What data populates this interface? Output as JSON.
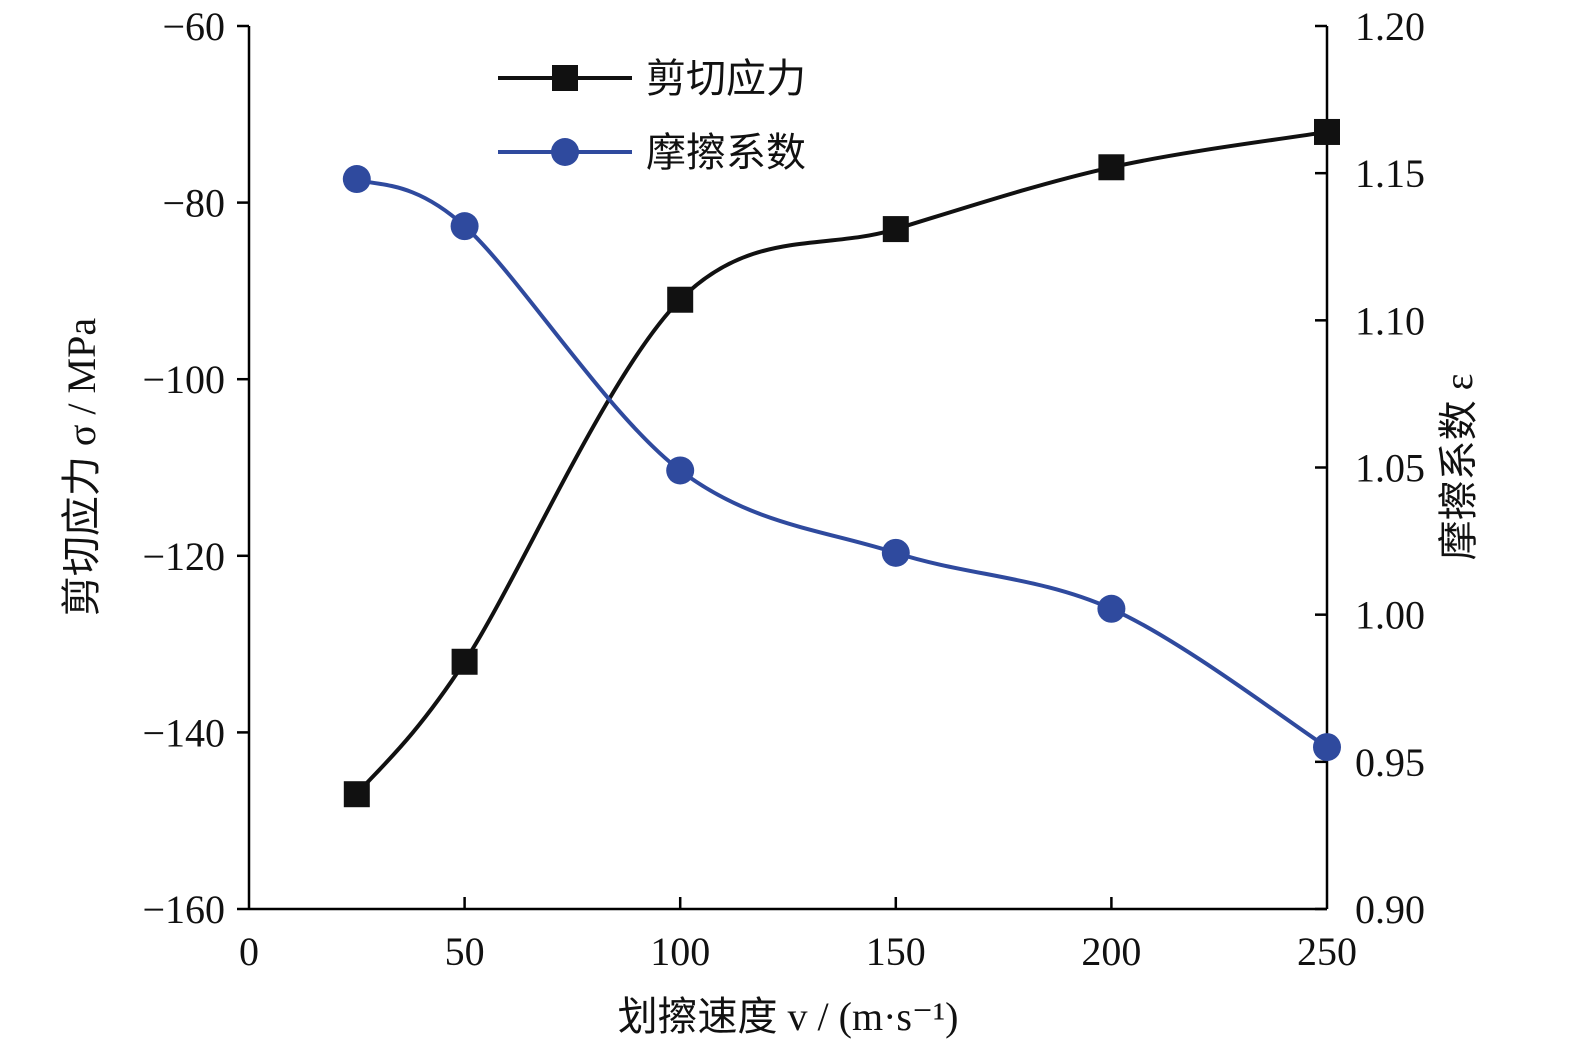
{
  "chart_data": {
    "type": "line",
    "xlabel": "划擦速度 v / (m·s⁻¹)",
    "ylabel_left": "剪切应力 σ / MPa",
    "ylabel_right": "摩擦系数 ε",
    "xlim": [
      0,
      250
    ],
    "ylim_left": [
      -160,
      -60
    ],
    "ylim_right": [
      0.9,
      1.2
    ],
    "x_ticks": [
      "0",
      "50",
      "100",
      "150",
      "200",
      "250"
    ],
    "y_left_ticks": [
      "−60",
      "−80",
      "−100",
      "−120",
      "−140",
      "−160"
    ],
    "y_right_ticks": [
      "1.20",
      "1.15",
      "1.10",
      "1.05",
      "1.00",
      "0.95",
      "0.90"
    ],
    "legend_position": "top-center",
    "grid": false,
    "series": [
      {
        "name": "剪切应力",
        "axis": "left",
        "color": "#111111",
        "marker": "square",
        "x": [
          25,
          50,
          100,
          150,
          200,
          250
        ],
        "values": [
          -147,
          -132,
          -91,
          -83,
          -76,
          -72
        ]
      },
      {
        "name": "摩擦系数",
        "axis": "right",
        "color": "#2f4a9e",
        "marker": "circle",
        "x": [
          25,
          50,
          100,
          150,
          200,
          250
        ],
        "values": [
          1.148,
          1.132,
          1.049,
          1.021,
          1.002,
          0.955
        ]
      }
    ]
  }
}
